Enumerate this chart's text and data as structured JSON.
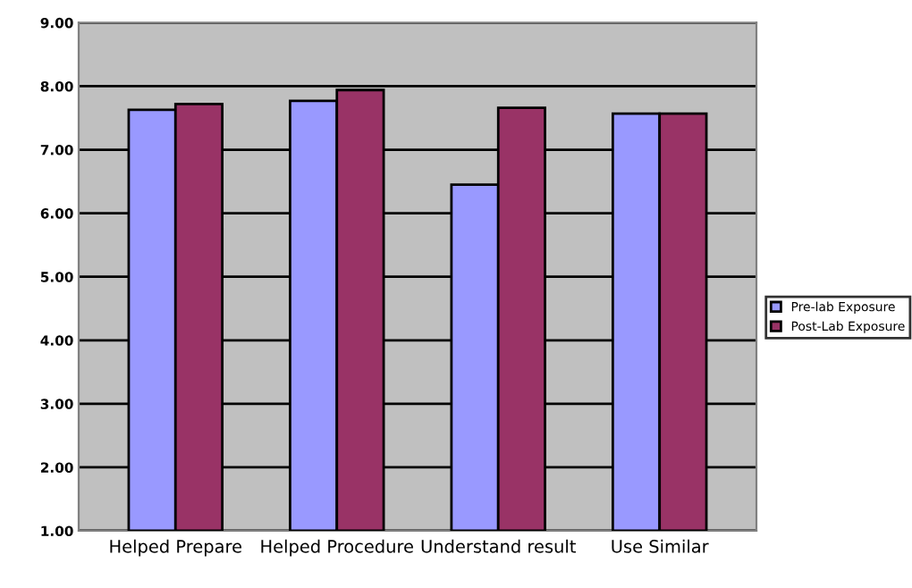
{
  "chart_data": {
    "type": "bar",
    "categories": [
      "Helped Prepare",
      "Helped Procedure",
      "Understand result",
      "Use Similar"
    ],
    "series": [
      {
        "name": "Pre-lab Exposure",
        "color": "#9999ff",
        "values": [
          7.63,
          7.77,
          6.45,
          7.57
        ]
      },
      {
        "name": "Post-Lab Exposure",
        "color": "#993366",
        "values": [
          7.72,
          7.94,
          7.66,
          7.57
        ]
      }
    ],
    "ylim": [
      1,
      9
    ],
    "yticks": [
      {
        "value": 1,
        "label": "1.00"
      },
      {
        "value": 2,
        "label": "2.00"
      },
      {
        "value": 3,
        "label": "3.00"
      },
      {
        "value": 4,
        "label": "4.00"
      },
      {
        "value": 5,
        "label": "5.00"
      },
      {
        "value": 6,
        "label": "6.00"
      },
      {
        "value": 7,
        "label": "7.00"
      },
      {
        "value": 8,
        "label": "8.00"
      },
      {
        "value": 9,
        "label": "9.00"
      }
    ],
    "grid": "y",
    "legend": "right"
  }
}
